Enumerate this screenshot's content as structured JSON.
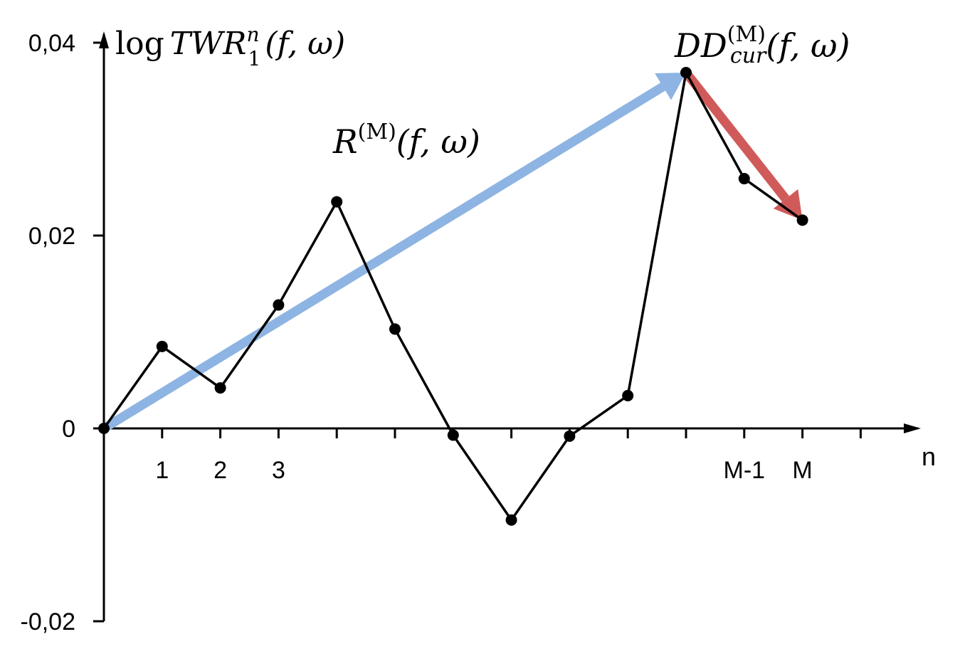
{
  "chart_data": {
    "type": "line",
    "x": [
      0,
      1,
      2,
      3,
      4,
      5,
      6,
      7,
      8,
      9,
      10,
      11,
      12
    ],
    "values": [
      0,
      0.0085,
      0.0042,
      0.0128,
      0.0235,
      0.0103,
      -0.0007,
      -0.0095,
      -0.0008,
      0.0034,
      0.0369,
      0.0259,
      0.0216
    ],
    "ylim": [
      -0.02,
      0.04
    ],
    "xlim": [
      0,
      14
    ],
    "y_ticks": [
      {
        "value": 0.04,
        "label": "0,04"
      },
      {
        "value": 0.02,
        "label": "0,02"
      },
      {
        "value": 0,
        "label": "0"
      },
      {
        "value": -0.02,
        "label": "-0,02"
      }
    ],
    "x_tick_positions": [
      1,
      2,
      3,
      4,
      5,
      6,
      7,
      8,
      9,
      10,
      11,
      12,
      13
    ],
    "x_tick_labels": [
      {
        "x": 1,
        "label": "1"
      },
      {
        "x": 2,
        "label": "2"
      },
      {
        "x": 3,
        "label": "3"
      },
      {
        "x": 11,
        "label": "M-1"
      },
      {
        "x": 12,
        "label": "M"
      }
    ],
    "xlabel": "n",
    "ylabel": {
      "prefix": "log",
      "main": "TWR",
      "superscript": "n",
      "subscript": "1",
      "args": "(f, ω)"
    },
    "annotations": [
      {
        "name": "return-arrow",
        "label_main": "R",
        "label_superscript": "(M)",
        "label_args": "(f, ω)",
        "color": "#8DB4E2",
        "from": {
          "x": 0,
          "y": 0
        },
        "to": {
          "x": 10,
          "y": 0.0369
        }
      },
      {
        "name": "drawdown-arrow",
        "label_main": "DD",
        "label_superscript": "(M)",
        "label_subscript": "cur",
        "label_args": "(f, ω)",
        "color": "#D05A5A",
        "from": {
          "x": 10,
          "y": 0.0369
        },
        "to": {
          "x": 12,
          "y": 0.0216
        }
      }
    ],
    "grid": false,
    "line_color": "#000000"
  }
}
